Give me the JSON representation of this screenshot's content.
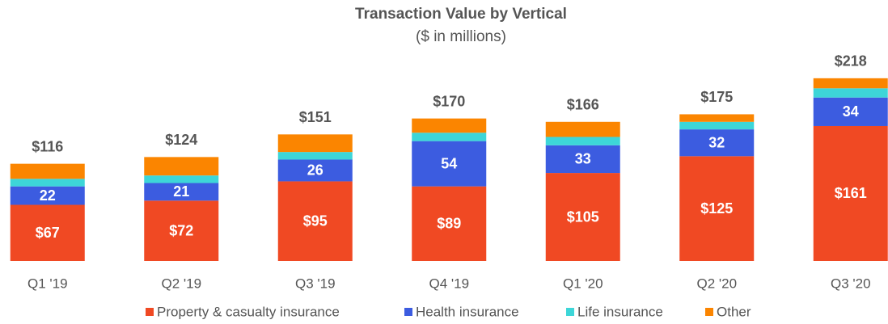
{
  "chart_data": {
    "type": "stacked_bar",
    "title": "Transaction Value by Vertical",
    "subtitle": "($ in millions)",
    "categories": [
      "Q1 '19",
      "Q2 '19",
      "Q3 '19",
      "Q4 '19",
      "Q1 '20",
      "Q2 '20",
      "Q3 '20"
    ],
    "series": [
      {
        "name": "Property & casualty insurance",
        "color": "#f04923",
        "values": [
          67,
          72,
          95,
          89,
          105,
          125,
          161
        ],
        "value_labels": [
          "$67",
          "$72",
          "$95",
          "$89",
          "$105",
          "$125",
          "$161"
        ]
      },
      {
        "name": "Health insurance",
        "color": "#3c5ce0",
        "values": [
          22,
          21,
          26,
          54,
          33,
          32,
          34
        ]
      },
      {
        "name": "Life insurance",
        "color": "#3dd6d8",
        "values": [
          9,
          9,
          9,
          10,
          10,
          9,
          11
        ]
      },
      {
        "name": "Other",
        "color": "#fb8500",
        "values": [
          18,
          22,
          21,
          17,
          18,
          9,
          12
        ]
      }
    ],
    "totals": [
      116,
      124,
      151,
      170,
      166,
      175,
      218
    ],
    "total_labels": [
      "$116",
      "$124",
      "$151",
      "$170",
      "$166",
      "$175",
      "$218"
    ],
    "ylim": [
      0,
      230
    ],
    "label_series": [
      0,
      1
    ]
  }
}
